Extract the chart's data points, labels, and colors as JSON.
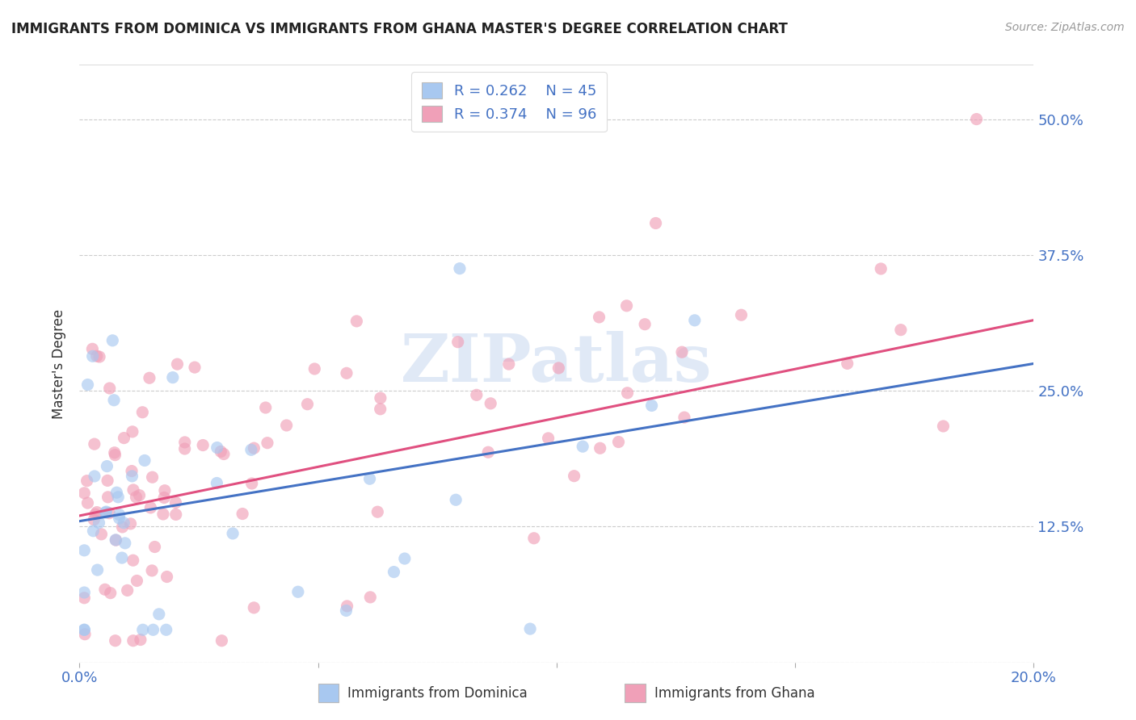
{
  "title": "IMMIGRANTS FROM DOMINICA VS IMMIGRANTS FROM GHANA MASTER'S DEGREE CORRELATION CHART",
  "source": "Source: ZipAtlas.com",
  "ylabel": "Master's Degree",
  "xlim": [
    0.0,
    0.2
  ],
  "ylim": [
    0.0,
    0.55
  ],
  "xticks": [
    0.0,
    0.05,
    0.1,
    0.15,
    0.2
  ],
  "xticklabels": [
    "0.0%",
    "",
    "",
    "",
    "20.0%"
  ],
  "yticks": [
    0.0,
    0.125,
    0.25,
    0.375,
    0.5
  ],
  "yticklabels": [
    "",
    "12.5%",
    "25.0%",
    "37.5%",
    "50.0%"
  ],
  "dominica_color": "#a8c8f0",
  "ghana_color": "#f0a0b8",
  "dominica_line_color": "#4472C4",
  "ghana_line_color": "#e05080",
  "legend_label_dom": "R = 0.262    N = 45",
  "legend_label_gha": "R = 0.374    N = 96",
  "watermark": "ZIPatlas",
  "tick_color": "#4472C4",
  "grid_color": "#cccccc",
  "title_color": "#222222",
  "source_color": "#999999"
}
